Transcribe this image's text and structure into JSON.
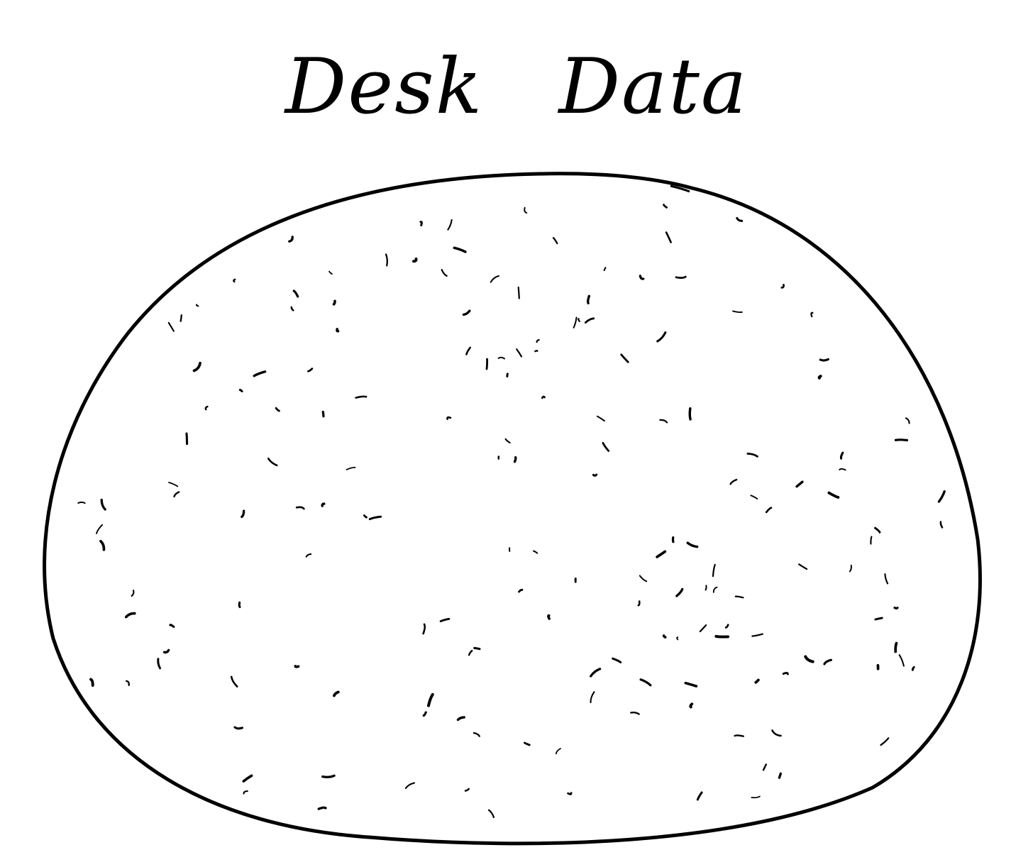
{
  "title": "Desk Data",
  "colors": {
    "ink": "#000000",
    "paper": "#ffffff"
  },
  "sketch": {
    "shape": "hand-drawn rounded blob",
    "fill": "speckled"
  }
}
